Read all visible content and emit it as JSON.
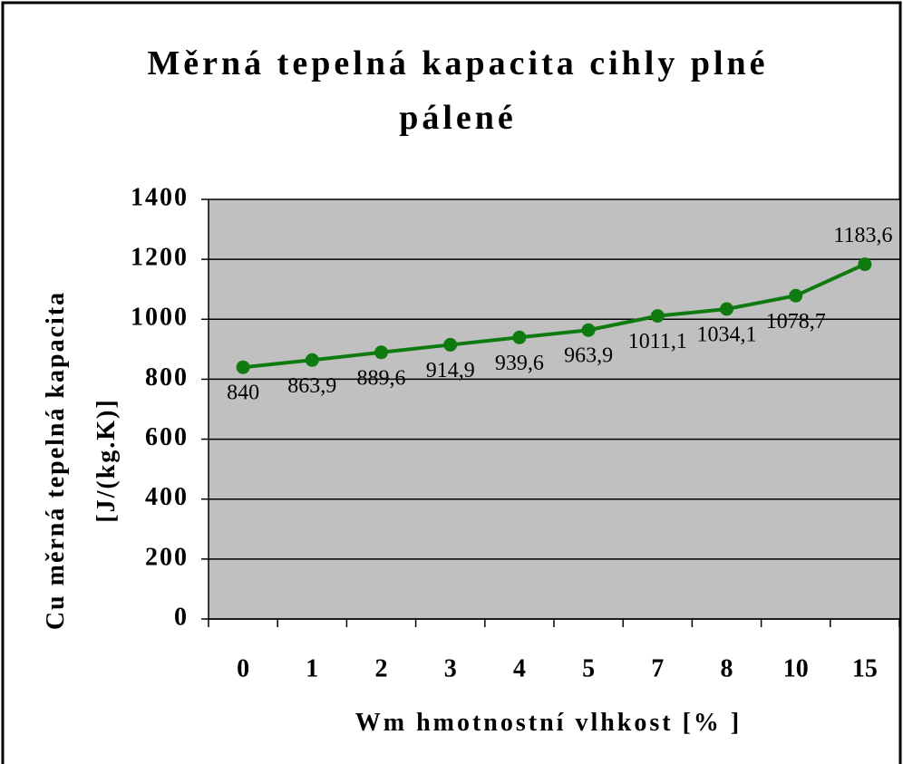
{
  "chart_data": {
    "type": "line",
    "title": "Měrná tepelná kapacita cihly plné pálené",
    "x_label": "Wm hmotnostní vlhkost [% ]",
    "y_label": "Cu měrná tepelná kapacita [J/(kg.K)]",
    "categories": [
      "0",
      "1",
      "2",
      "3",
      "4",
      "5",
      "7",
      "8",
      "10",
      "15"
    ],
    "series": [
      {
        "name": "Cu",
        "color": "#0f7a0f",
        "values": [
          840,
          863.9,
          889.6,
          914.9,
          939.6,
          963.9,
          1011.1,
          1034.1,
          1078.7,
          1183.6
        ],
        "value_labels": [
          "840",
          "863,9",
          "889,6",
          "914,9",
          "939,6",
          "963,9",
          "1011,1",
          "1034,1",
          "1078,7",
          "1183,6"
        ]
      }
    ],
    "ylim": [
      0,
      1400
    ],
    "yticks": [
      0,
      200,
      400,
      600,
      800,
      1000,
      1200,
      1400
    ],
    "grid": true,
    "background": "#c0c0c0"
  }
}
